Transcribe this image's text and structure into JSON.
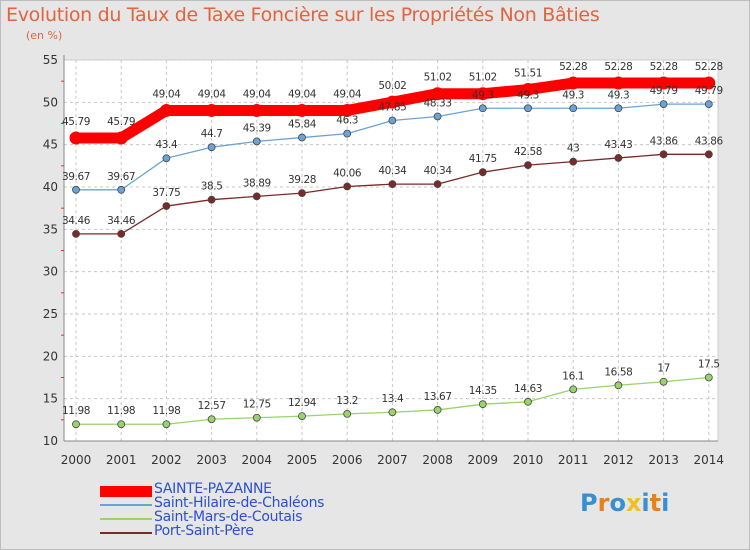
{
  "chart_data": {
    "type": "line",
    "title": "Evolution du Taux de Taxe Foncière sur les Propriétés Non Bâties",
    "subtitle": "(en %)",
    "xlabel": "",
    "ylabel": "",
    "ylim": [
      10,
      55
    ],
    "yticks": [
      10,
      15,
      20,
      25,
      30,
      35,
      40,
      45,
      50,
      55
    ],
    "grid": true,
    "legend_position": "bottom-left",
    "x": [
      "2000",
      "2001",
      "2002",
      "2003",
      "2004",
      "2005",
      "2006",
      "2007",
      "2008",
      "2009",
      "2010",
      "2011",
      "2012",
      "2013",
      "2014"
    ],
    "series": [
      {
        "name": "SAINTE-PAZANNE",
        "color": "#ff0000",
        "emphasis": true,
        "values": [
          45.79,
          45.79,
          49.04,
          49.04,
          49.04,
          49.04,
          49.04,
          50.02,
          51.02,
          51.02,
          51.51,
          52.28,
          52.28,
          52.28,
          52.28
        ],
        "labels": [
          "45.79",
          "45.79",
          "49.04",
          "49.04",
          "49.04",
          "49.04",
          "49.04",
          "50.02",
          "51.02",
          "51.02",
          "51.51",
          "52.28",
          "52.28",
          "52.28",
          "52.28"
        ]
      },
      {
        "name": "Saint-Hilaire-de-Chaléons",
        "color": "#6ba3d6",
        "values": [
          39.67,
          39.67,
          43.4,
          44.7,
          45.39,
          45.84,
          46.3,
          47.85,
          48.33,
          49.3,
          49.3,
          49.3,
          49.3,
          49.79,
          49.79
        ],
        "labels": [
          "39.67",
          "39.67",
          "43.4",
          "44.7",
          "45.39",
          "45.84",
          "46.3",
          "47.85",
          "48.33",
          "49.3",
          "49.3",
          "49.3",
          "49.3",
          "49.79",
          "49.79"
        ]
      },
      {
        "name": "Saint-Mars-de-Coutais",
        "color": "#99d36b",
        "values": [
          11.98,
          11.98,
          11.98,
          12.57,
          12.75,
          12.94,
          13.2,
          13.4,
          13.67,
          14.35,
          14.63,
          16.1,
          16.58,
          17,
          17.5
        ],
        "labels": [
          "11.98",
          "11.98",
          "11.98",
          "12.57",
          "12.75",
          "12.94",
          "13.2",
          "13.4",
          "13.67",
          "14.35",
          "14.63",
          "16.1",
          "16.58",
          "17",
          "17.5"
        ]
      },
      {
        "name": "Port-Saint-Père",
        "color": "#7a2a2a",
        "values": [
          34.46,
          34.46,
          37.75,
          38.5,
          38.89,
          39.28,
          40.06,
          40.34,
          40.34,
          41.75,
          42.58,
          43,
          43.43,
          43.86,
          43.86
        ],
        "labels": [
          "34.46",
          "34.46",
          "37.75",
          "38.5",
          "38.89",
          "39.28",
          "40.06",
          "40.34",
          "40.34",
          "41.75",
          "42.58",
          "43",
          "43.43",
          "43.86",
          "43.86"
        ]
      }
    ],
    "legend": [
      "SAINTE-PAZANNE",
      "Saint-Hilaire-de-Chaléons",
      "Saint-Mars-de-Coutais",
      "Port-Saint-Père"
    ]
  },
  "logo": {
    "text": "Proxiti",
    "letters": [
      "P",
      "r",
      "o",
      "x",
      "i",
      "t",
      "i"
    ],
    "colors": [
      "#3a8fd0",
      "#e6821e",
      "#3a8fd0",
      "#f0c020",
      "#3a8fd0",
      "#e6821e",
      "#3a8fd0"
    ]
  }
}
